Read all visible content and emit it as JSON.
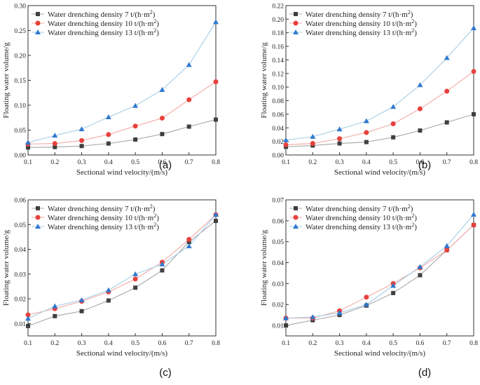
{
  "chart_data": [
    {
      "type": "line",
      "panel": "(a)",
      "xlabel": "Sectional wind velocity/(m/s)",
      "ylabel": "Floating water volume/g",
      "xlim": [
        0.1,
        0.8
      ],
      "ylim": [
        0,
        0.3
      ],
      "x_ticks": [
        "0.1",
        "0.2",
        "0.3",
        "0.4",
        "0.5",
        "0.6",
        "0.7",
        "0.8"
      ],
      "y_ticks": [
        "0.00",
        "0.05",
        "0.10",
        "0.15",
        "0.20",
        "0.25",
        "0.30"
      ],
      "x": [
        0.1,
        0.2,
        0.3,
        0.4,
        0.5,
        0.6,
        0.7,
        0.8
      ],
      "series": [
        {
          "name": "Water drenching density 7 t/(h·m²)",
          "marker": "square",
          "values": [
            0.015,
            0.016,
            0.018,
            0.023,
            0.031,
            0.042,
            0.057,
            0.071
          ]
        },
        {
          "name": "Water drenching density 10 t/(h·m²)",
          "marker": "circle",
          "values": [
            0.022,
            0.023,
            0.029,
            0.041,
            0.058,
            0.074,
            0.111,
            0.147
          ]
        },
        {
          "name": "Water drenching density 13 t/(h·m²)",
          "marker": "triangle",
          "values": [
            0.025,
            0.039,
            0.052,
            0.076,
            0.099,
            0.131,
            0.181,
            0.267
          ]
        }
      ]
    },
    {
      "type": "line",
      "panel": "(b)",
      "xlabel": "Sectional wind velocity/(m/s)",
      "ylabel": "Floating water volume/g",
      "xlim": [
        0.1,
        0.8
      ],
      "ylim": [
        0,
        0.22
      ],
      "x_ticks": [
        "0.1",
        "0.2",
        "0.3",
        "0.4",
        "0.5",
        "0.6",
        "0.7",
        "0.8"
      ],
      "y_ticks": [
        "0.00",
        "0.02",
        "0.04",
        "0.06",
        "0.08",
        "0.10",
        "0.12",
        "0.14",
        "0.16",
        "0.18",
        "0.20",
        "0.22"
      ],
      "x": [
        0.1,
        0.2,
        0.3,
        0.4,
        0.5,
        0.6,
        0.7,
        0.8
      ],
      "series": [
        {
          "name": "Water drenching density 7 t/(h·m²)",
          "marker": "square",
          "values": [
            0.012,
            0.014,
            0.017,
            0.019,
            0.026,
            0.036,
            0.048,
            0.06
          ]
        },
        {
          "name": "Water drenching density 10 t/(h·m²)",
          "marker": "circle",
          "values": [
            0.015,
            0.017,
            0.024,
            0.033,
            0.046,
            0.068,
            0.094,
            0.123
          ]
        },
        {
          "name": "Water drenching density 13 t/(h·m²)",
          "marker": "triangle",
          "values": [
            0.022,
            0.027,
            0.038,
            0.05,
            0.071,
            0.103,
            0.143,
            0.187
          ]
        }
      ]
    },
    {
      "type": "line",
      "panel": "(c)",
      "xlabel": "Sectional wind velocity/(m/s)",
      "ylabel": "Floating water volume/g",
      "xlim": [
        0.1,
        0.8
      ],
      "ylim": [
        0.005,
        0.06
      ],
      "x_ticks": [
        "0.1",
        "0.2",
        "0.3",
        "0.4",
        "0.5",
        "0.6",
        "0.7",
        "0.8"
      ],
      "y_ticks": [
        "0.01",
        "0.02",
        "0.03",
        "0.04",
        "0.05",
        "0.06"
      ],
      "x": [
        0.1,
        0.2,
        0.3,
        0.4,
        0.5,
        0.6,
        0.7,
        0.8
      ],
      "series": [
        {
          "name": "Water drenching density 7 t/(h·m²)",
          "marker": "square",
          "values": [
            0.009,
            0.013,
            0.015,
            0.0193,
            0.0245,
            0.0315,
            0.043,
            0.0515
          ]
        },
        {
          "name": "Water drenching density 10 t/(h·m²)",
          "marker": "circle",
          "values": [
            0.0135,
            0.016,
            0.019,
            0.0228,
            0.028,
            0.0348,
            0.044,
            0.054
          ]
        },
        {
          "name": "Water drenching density 13 t/(h·m²)",
          "marker": "triangle",
          "values": [
            0.012,
            0.017,
            0.0195,
            0.0235,
            0.03,
            0.034,
            0.0413,
            0.054
          ]
        }
      ]
    },
    {
      "type": "line",
      "panel": "(d)",
      "xlabel": "Sectional wind velocity/(m/s)",
      "ylabel": "Floating water volume/g",
      "xlim": [
        0.1,
        0.8
      ],
      "ylim": [
        0.005,
        0.07
      ],
      "x_ticks": [
        "0.1",
        "0.2",
        "0.3",
        "0.4",
        "0.5",
        "0.6",
        "0.7",
        "0.8"
      ],
      "y_ticks": [
        "0.01",
        "0.02",
        "0.03",
        "0.04",
        "0.05",
        "0.06",
        "0.07"
      ],
      "x": [
        0.1,
        0.2,
        0.3,
        0.4,
        0.5,
        0.6,
        0.7,
        0.8
      ],
      "series": [
        {
          "name": "Water drenching density 7 t/(h·m²)",
          "marker": "square",
          "values": [
            0.01,
            0.0125,
            0.015,
            0.0195,
            0.0255,
            0.034,
            0.046,
            0.058
          ]
        },
        {
          "name": "Water drenching density 10 t/(h·m²)",
          "marker": "circle",
          "values": [
            0.0135,
            0.0135,
            0.017,
            0.0235,
            0.03,
            0.0375,
            0.046,
            0.058
          ]
        },
        {
          "name": "Water drenching density 13 t/(h·m²)",
          "marker": "triangle",
          "values": [
            0.0135,
            0.014,
            0.016,
            0.02,
            0.029,
            0.038,
            0.048,
            0.063
          ]
        }
      ]
    }
  ],
  "colors": {
    "square": "#3f3f3f",
    "circle": "#e8413c",
    "triangle": "#2f79d0",
    "line_square": "#a7a7a7",
    "line_circle": "#f2aaa5",
    "line_triangle": "#a6cee6",
    "axis": "#333333"
  }
}
